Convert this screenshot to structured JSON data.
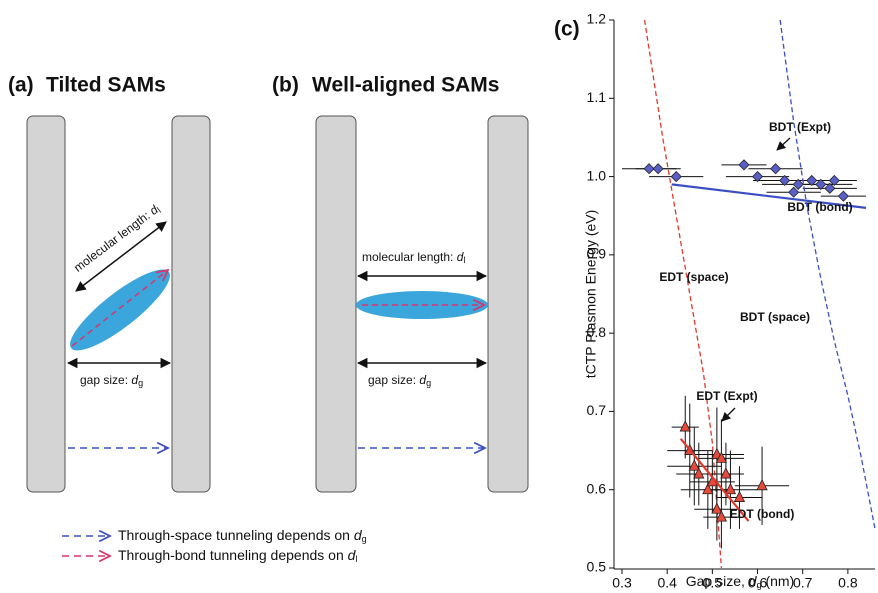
{
  "diagram": {
    "panel_a": {
      "label": "(a)",
      "title": "Tilted SAMs",
      "length_label": "molecular length: ",
      "length_symbol": "d",
      "length_subscript": "l",
      "gap_label": "gap size: ",
      "gap_symbol": "d",
      "gap_subscript": "g"
    },
    "panel_b": {
      "label": "(b)",
      "title": "Well-aligned SAMs",
      "length_label": "molecular length: ",
      "length_symbol": "d",
      "length_subscript": "l",
      "gap_label": "gap size: ",
      "gap_symbol": "d",
      "gap_subscript": "g"
    },
    "legend": [
      {
        "text": "Through-space tunneling depends on ",
        "symbol": "d",
        "subscript": "g"
      },
      {
        "text": "Through-bond tunneling depends on ",
        "symbol": "d",
        "subscript": "l"
      }
    ]
  },
  "chart_data": {
    "type": "scatter",
    "label": "(c)",
    "x_label": {
      "text": "Gap size, ",
      "symbol": "d",
      "subscript": "g",
      "unit": " (nm)"
    },
    "y_label": "tCTP Plasmon Energy (eV)",
    "xlim": [
      0.3,
      0.86
    ],
    "xticks": [
      0.3,
      0.4,
      0.5,
      0.6,
      0.7,
      0.8
    ],
    "ylim": [
      0.5,
      1.2
    ],
    "yticks": [
      0.5,
      0.6,
      0.7,
      0.8,
      0.9,
      {
        "value": 1,
        "label": "1.0"
      },
      1.1,
      1.2
    ],
    "series": [
      {
        "name": "BDT (Expt)",
        "type": "scatter",
        "marker": "diamond",
        "color": "#5a5fc8",
        "x": [
          0.36,
          0.38,
          0.42,
          0.57,
          0.6,
          0.64,
          0.66,
          0.69,
          0.68,
          0.74,
          0.72,
          0.77,
          0.76,
          0.79
        ],
        "values": [
          1.01,
          1.01,
          1.0,
          1.015,
          1.0,
          1.01,
          0.995,
          0.99,
          0.98,
          0.99,
          0.995,
          0.995,
          0.985,
          0.975
        ],
        "x_err": [
          0.06,
          0.05,
          0.06,
          0.05,
          0.07,
          0.06,
          0.07,
          0.08,
          0.06,
          0.07,
          0.06,
          0.05,
          0.06,
          0.05
        ]
      },
      {
        "name": "BDT (bond)",
        "type": "line",
        "dashed": false,
        "color": "#3a4fc4",
        "x": [
          0.41,
          0.84
        ],
        "values": [
          0.99,
          0.96
        ]
      },
      {
        "name": "BDT (space)",
        "type": "line",
        "dashed": true,
        "color": "#3a4fc4",
        "x": [
          0.65,
          0.68,
          0.71,
          0.74,
          0.77,
          0.8,
          0.83,
          0.86
        ],
        "values": [
          1.2,
          1.07,
          0.96,
          0.87,
          0.79,
          0.72,
          0.64,
          0.55
        ]
      },
      {
        "name": "EDT (space)",
        "type": "line",
        "dashed": true,
        "color": "#e0392b",
        "x": [
          0.35,
          0.39,
          0.42,
          0.45,
          0.48,
          0.5,
          0.52
        ],
        "values": [
          1.2,
          1.05,
          0.95,
          0.85,
          0.75,
          0.66,
          0.5
        ]
      },
      {
        "name": "EDT (Expt)",
        "type": "scatter",
        "marker": "triangle",
        "color": "#e8493a",
        "x": [
          0.44,
          0.45,
          0.46,
          0.47,
          0.49,
          0.5,
          0.51,
          0.52,
          0.53,
          0.54,
          0.56,
          0.61,
          0.51,
          0.52
        ],
        "values": [
          0.68,
          0.65,
          0.63,
          0.62,
          0.6,
          0.61,
          0.645,
          0.64,
          0.62,
          0.6,
          0.59,
          0.605,
          0.575,
          0.565
        ],
        "x_err": [
          0.03,
          0.05,
          0.06,
          0.05,
          0.06,
          0.05,
          0.06,
          0.05,
          0.04,
          0.06,
          0.05,
          0.06,
          0.05,
          0.04
        ],
        "y_err": [
          0.04,
          0.06,
          0.05,
          0.04,
          0.05,
          0.04,
          0.06,
          0.05,
          0.04,
          0.05,
          0.04,
          0.05,
          0.04,
          0.04
        ]
      },
      {
        "name": "EDT (bond)",
        "type": "line",
        "dashed": false,
        "color": "#e0392b",
        "x": [
          0.43,
          0.58
        ],
        "values": [
          0.665,
          0.56
        ]
      }
    ]
  }
}
